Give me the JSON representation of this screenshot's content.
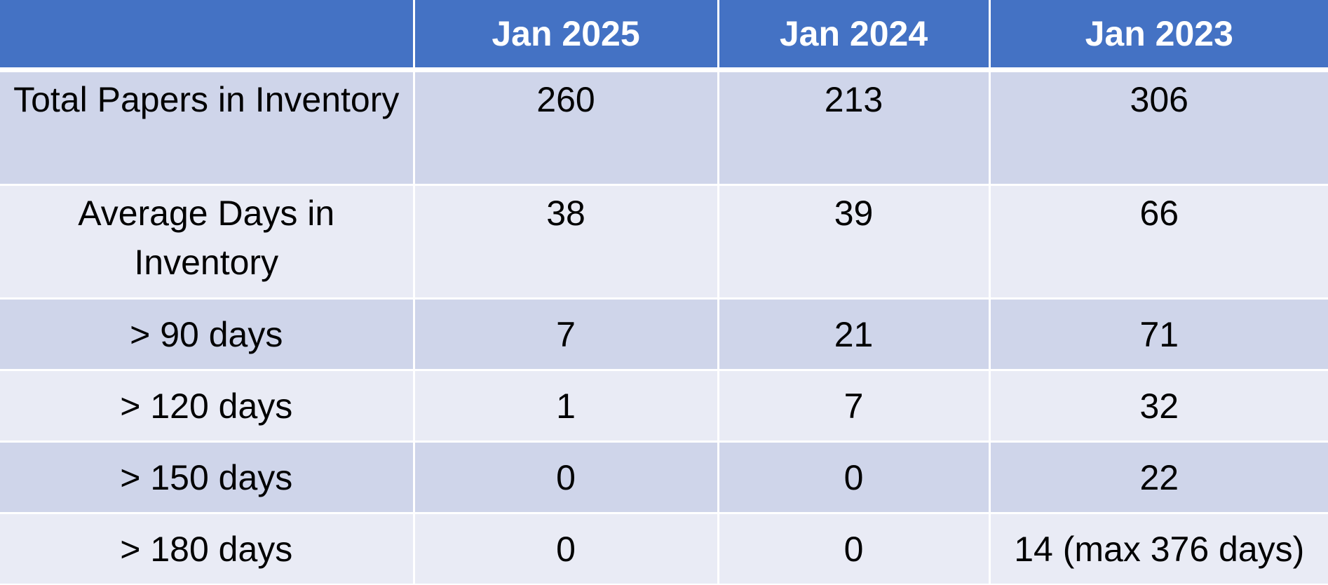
{
  "table": {
    "columns": [
      "",
      "Jan 2025",
      "Jan 2024",
      "Jan 2023"
    ],
    "rows": [
      {
        "label": "Total Papers in Inventory",
        "values": [
          "260",
          "213",
          "306"
        ]
      },
      {
        "label": "Average Days in Inventory",
        "values": [
          "38",
          "39",
          "66"
        ]
      },
      {
        "label": "> 90 days",
        "values": [
          "7",
          "21",
          "71"
        ]
      },
      {
        "label": "> 120 days",
        "values": [
          "1",
          "7",
          "32"
        ]
      },
      {
        "label": "> 150 days",
        "values": [
          "0",
          "0",
          "22"
        ]
      },
      {
        "label": "> 180 days",
        "values": [
          "0",
          "0",
          "14 (max 376 days)"
        ]
      }
    ]
  },
  "colors": {
    "header_bg": "#4472c4",
    "band_dark": "#cfd5ea",
    "band_light": "#e9ebf5",
    "header_text": "#ffffff",
    "body_text": "#000000"
  }
}
